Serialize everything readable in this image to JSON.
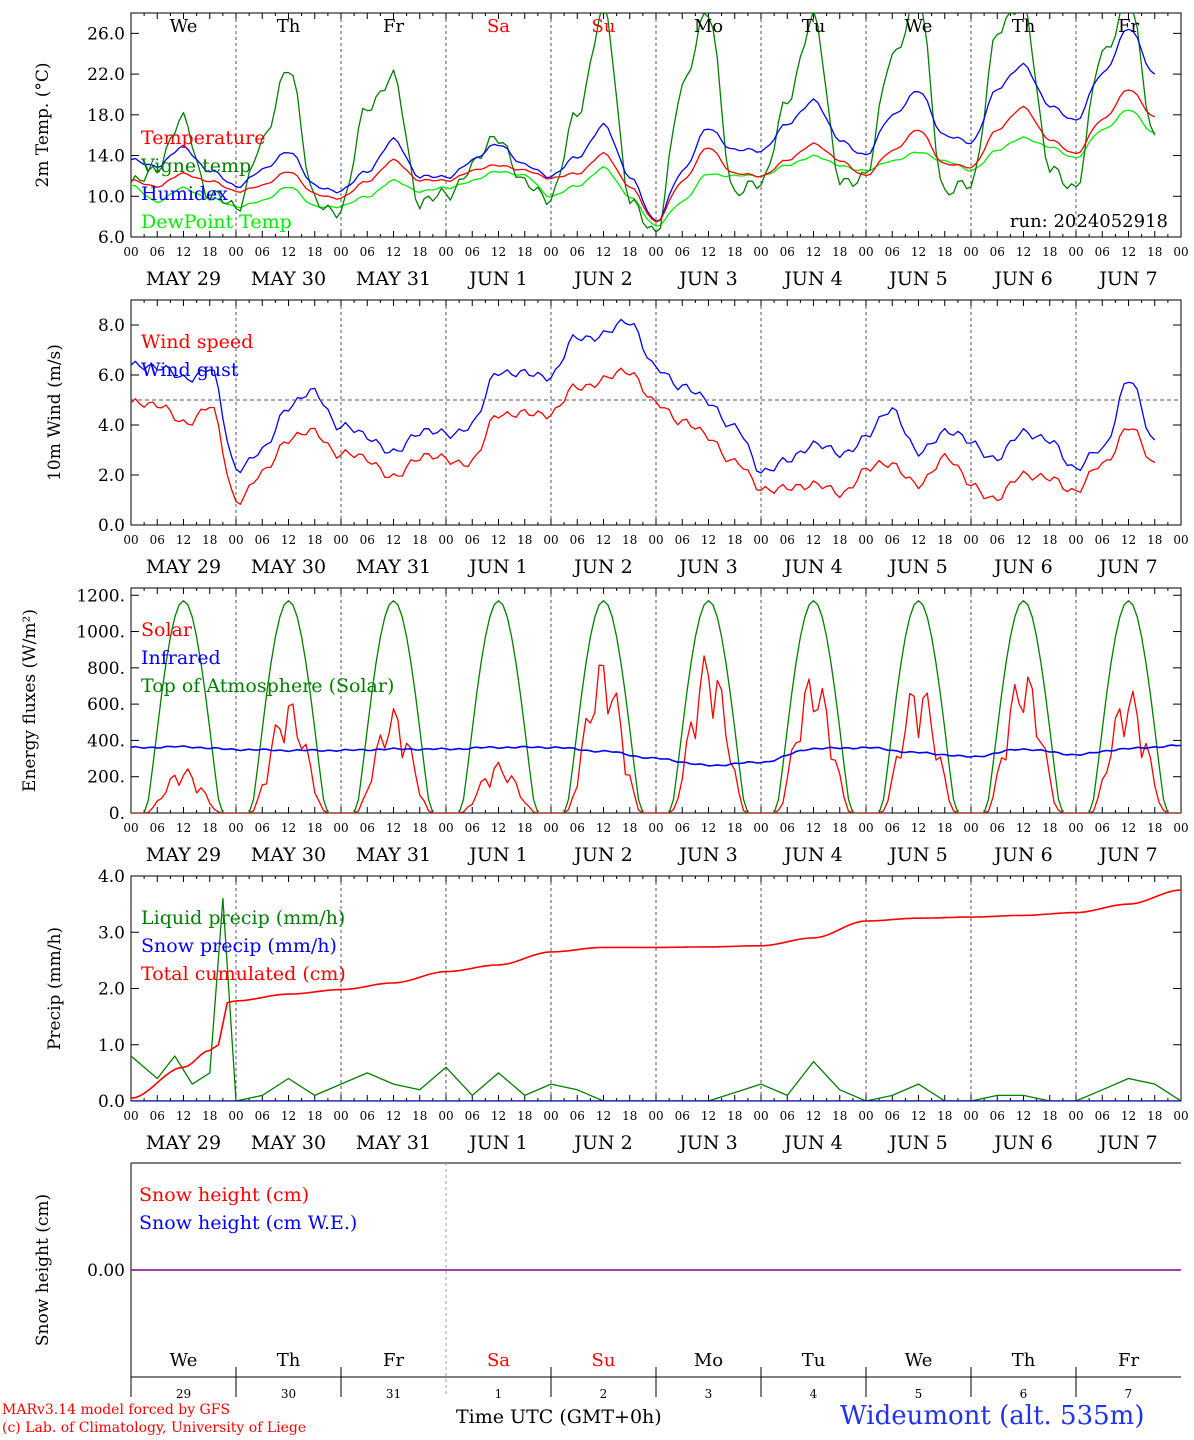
{
  "meta": {
    "run_label": "run: 2024052918",
    "x_axis_title": "Time UTC (GMT+0h)",
    "credit_line1": "MARv3.14 model forced by GFS",
    "credit_line2": "(c) Lab. of Climatology, University of Liege",
    "station": "Wideumont (alt. 535m)"
  },
  "colors": {
    "red": "#ff0000",
    "green": "#008000",
    "blue": "#0000ff",
    "lime": "#00ee00",
    "purple": "#800080",
    "grid": "#777777"
  },
  "weekdays": [
    {
      "label": "We",
      "weekend": false
    },
    {
      "label": "Th",
      "weekend": false
    },
    {
      "label": "Fr",
      "weekend": false
    },
    {
      "label": "Sa",
      "weekend": true
    },
    {
      "label": "Su",
      "weekend": true
    },
    {
      "label": "Mo",
      "weekend": false
    },
    {
      "label": "Tu",
      "weekend": false
    },
    {
      "label": "We",
      "weekend": false
    },
    {
      "label": "Th",
      "weekend": false
    },
    {
      "label": "Fr",
      "weekend": false
    }
  ],
  "date_labels": [
    "MAY 29",
    "MAY 30",
    "MAY 31",
    "JUN  1",
    "JUN  2",
    "JUN  3",
    "JUN  4",
    "JUN  5",
    "JUN  6",
    "JUN  7"
  ],
  "day_numbers": [
    "29",
    "30",
    "31",
    "1",
    "2",
    "3",
    "4",
    "5",
    "6",
    "7"
  ],
  "hour_ticks": [
    "00",
    "06",
    "12",
    "18"
  ],
  "chart_data": [
    {
      "id": "temperature",
      "type": "line",
      "ylabel": "2m Temp. (°C)",
      "ylim": [
        6,
        28
      ],
      "yticks": [
        "6.0",
        "10.0",
        "14.0",
        "18.0",
        "22.0",
        "26.0"
      ],
      "x_unit": "hours since 2024-05-29 00 UTC",
      "x": [
        0,
        6,
        12,
        18,
        24,
        30,
        36,
        42,
        48,
        54,
        60,
        66,
        72,
        78,
        84,
        90,
        96,
        102,
        108,
        114,
        120,
        126,
        132,
        138,
        144,
        150,
        156,
        162,
        168,
        174,
        180,
        186,
        192,
        198,
        204,
        210,
        216,
        222,
        228,
        234
      ],
      "series": [
        {
          "name": "Temperature",
          "color": "red",
          "values": [
            11.5,
            11.0,
            12.2,
            11.5,
            10.5,
            11.0,
            12.5,
            10.2,
            9.8,
            11.5,
            13.5,
            11.6,
            11.5,
            12.5,
            13.1,
            12.5,
            11.8,
            12.2,
            14.2,
            11.0,
            7.4,
            11.5,
            14.8,
            12.2,
            12.0,
            13.5,
            15.2,
            13.5,
            12.0,
            14.5,
            16.5,
            13.2,
            12.8,
            16.5,
            18.8,
            15.5,
            14.2,
            17.5,
            20.5,
            17.8
          ]
        },
        {
          "name": "Vigne temp",
          "color": "green",
          "values": [
            11.0,
            13.0,
            17.5,
            10.0,
            9.0,
            15.0,
            23.0,
            9.5,
            8.5,
            19.0,
            21.5,
            9.5,
            10.0,
            13.0,
            16.0,
            11.0,
            10.0,
            18.0,
            28.5,
            10.0,
            6.0,
            21.0,
            28.0,
            10.0,
            11.5,
            19.0,
            28.0,
            11.5,
            12.0,
            24.0,
            29.0,
            10.5,
            11.0,
            26.0,
            29.0,
            12.5,
            11.0,
            24.0,
            29.0,
            16.0
          ]
        },
        {
          "name": "Humidex",
          "color": "blue",
          "values": [
            13.5,
            13.0,
            14.8,
            12.5,
            11.0,
            12.5,
            14.5,
            11.0,
            10.5,
            12.5,
            15.5,
            12.0,
            11.8,
            13.5,
            15.2,
            13.0,
            12.0,
            13.8,
            17.0,
            12.0,
            7.4,
            12.5,
            16.7,
            14.5,
            14.5,
            17.0,
            19.5,
            15.5,
            14.0,
            18.0,
            20.3,
            16.0,
            15.2,
            20.5,
            23.0,
            18.8,
            17.5,
            22.0,
            26.5,
            22.0
          ]
        },
        {
          "name": "DewPoint Temp",
          "color": "lime",
          "values": [
            11.0,
            9.5,
            10.8,
            9.8,
            9.0,
            9.5,
            11.0,
            9.0,
            9.0,
            10.0,
            11.5,
            10.5,
            10.8,
            11.5,
            12.5,
            12.0,
            10.0,
            11.0,
            12.8,
            10.0,
            7.0,
            9.5,
            12.2,
            12.0,
            12.0,
            13.0,
            14.0,
            13.0,
            12.5,
            13.5,
            14.3,
            13.5,
            12.5,
            14.5,
            15.8,
            14.8,
            13.8,
            16.5,
            18.5,
            16.2
          ]
        }
      ]
    },
    {
      "id": "wind",
      "type": "line",
      "ylabel": "10m Wind (m/s)",
      "ylim": [
        0,
        9
      ],
      "yticks": [
        "0.0",
        "2.0",
        "4.0",
        "6.0",
        "8.0"
      ],
      "reference_line": 5,
      "x": [
        0,
        6,
        12,
        18,
        24,
        30,
        36,
        42,
        48,
        54,
        60,
        66,
        72,
        78,
        84,
        90,
        96,
        102,
        108,
        114,
        120,
        126,
        132,
        138,
        144,
        150,
        156,
        162,
        168,
        174,
        180,
        186,
        192,
        198,
        204,
        210,
        216,
        222,
        228,
        234
      ],
      "series": [
        {
          "name": "Wind speed",
          "color": "red",
          "values": [
            4.8,
            4.9,
            4.0,
            4.8,
            1.0,
            2.0,
            3.5,
            3.7,
            2.8,
            2.7,
            1.8,
            2.8,
            2.6,
            2.5,
            4.5,
            4.4,
            4.5,
            5.5,
            5.8,
            6.2,
            4.8,
            4.2,
            3.5,
            2.5,
            1.5,
            1.4,
            1.7,
            1.2,
            2.2,
            2.5,
            1.5,
            2.8,
            1.6,
            1.0,
            2.1,
            1.8,
            1.4,
            2.4,
            3.9,
            2.5
          ]
        },
        {
          "name": "Wind gust",
          "color": "blue",
          "values": [
            6.3,
            6.4,
            5.8,
            6.3,
            2.3,
            2.9,
            4.8,
            5.3,
            3.9,
            3.6,
            2.8,
            3.8,
            3.6,
            4.0,
            6.2,
            6.0,
            6.0,
            7.5,
            7.6,
            8.2,
            6.2,
            5.6,
            4.9,
            3.9,
            2.2,
            2.5,
            3.3,
            2.8,
            3.5,
            4.7,
            2.8,
            3.8,
            3.3,
            2.6,
            3.8,
            3.3,
            2.3,
            3.0,
            5.8,
            3.4
          ]
        }
      ]
    },
    {
      "id": "energy",
      "type": "line",
      "ylabel": "Energy fluxes (W/m²)",
      "ylim": [
        0,
        1240
      ],
      "yticks": [
        "0.",
        "200.",
        "400.",
        "600.",
        "800.",
        "1000.",
        "1200."
      ],
      "x_unit": "hours since 2024-05-29 00 UTC",
      "series": [
        {
          "name": "Solar",
          "color": "red",
          "daily_peak": [
            250,
            630,
            580,
            280,
            860,
            890,
            780,
            740,
            800,
            690
          ]
        },
        {
          "name": "Infrared",
          "color": "blue",
          "x": [
            0,
            12,
            24,
            36,
            48,
            60,
            72,
            84,
            96,
            108,
            120,
            132,
            144,
            156,
            168,
            180,
            192,
            204,
            216,
            228,
            240
          ],
          "values": [
            360,
            365,
            350,
            345,
            345,
            352,
            352,
            362,
            362,
            340,
            300,
            262,
            280,
            355,
            360,
            332,
            310,
            352,
            322,
            355,
            372
          ]
        },
        {
          "name": "Top of Atmosphere (Solar)",
          "color": "green",
          "daily_peak": [
            1170,
            1170,
            1170,
            1170,
            1170,
            1170,
            1170,
            1170,
            1170,
            1170
          ]
        }
      ]
    },
    {
      "id": "precip",
      "type": "line",
      "ylabel": "Precip (mm/h)",
      "ylim": [
        0,
        4
      ],
      "yticks": [
        "0.0",
        "1.0",
        "2.0",
        "3.0",
        "4.0"
      ],
      "series": [
        {
          "name": "Liquid precip (mm/h)",
          "color": "green",
          "x": [
            0,
            6,
            10,
            14,
            18,
            21,
            24,
            30,
            36,
            42,
            48,
            54,
            60,
            66,
            72,
            78,
            84,
            90,
            96,
            102,
            108,
            120,
            132,
            144,
            150,
            156,
            162,
            168,
            174,
            180,
            186,
            192,
            198,
            204,
            210,
            216,
            222,
            228,
            234,
            240
          ],
          "values": [
            0.8,
            0.4,
            0.8,
            0.3,
            0.5,
            3.6,
            0.0,
            0.1,
            0.4,
            0.1,
            0.3,
            0.5,
            0.3,
            0.2,
            0.6,
            0.1,
            0.5,
            0.1,
            0.3,
            0.2,
            0.0,
            0.0,
            0.0,
            0.3,
            0.1,
            0.7,
            0.2,
            0.0,
            0.1,
            0.3,
            0.0,
            0.0,
            0.1,
            0.1,
            0.0,
            0.0,
            0.2,
            0.4,
            0.3,
            0.0
          ]
        },
        {
          "name": "Snow precip (mm/h)",
          "color": "blue",
          "x": [
            0,
            240
          ],
          "values": [
            0,
            0
          ]
        },
        {
          "name": "Total cumulated (cm)",
          "color": "red",
          "x": [
            0,
            12,
            18,
            20,
            22,
            24,
            36,
            48,
            60,
            72,
            84,
            96,
            108,
            120,
            132,
            144,
            156,
            168,
            180,
            192,
            204,
            216,
            228,
            240
          ],
          "values": [
            0.05,
            0.6,
            0.9,
            1.0,
            1.75,
            1.78,
            1.9,
            1.98,
            2.1,
            2.3,
            2.42,
            2.65,
            2.73,
            2.73,
            2.74,
            2.76,
            2.9,
            3.2,
            3.25,
            3.27,
            3.3,
            3.35,
            3.5,
            3.75
          ]
        }
      ]
    },
    {
      "id": "snow",
      "type": "line",
      "ylabel": "Snow height (cm)",
      "yticks": [
        "0.00"
      ],
      "series": [
        {
          "name": "Snow height (cm)",
          "color": "red",
          "x": [
            0,
            240
          ],
          "values": [
            0,
            0
          ]
        },
        {
          "name": "Snow height (cm W.E.)",
          "color": "blue",
          "x": [
            0,
            240
          ],
          "values": [
            0,
            0
          ]
        }
      ]
    }
  ]
}
